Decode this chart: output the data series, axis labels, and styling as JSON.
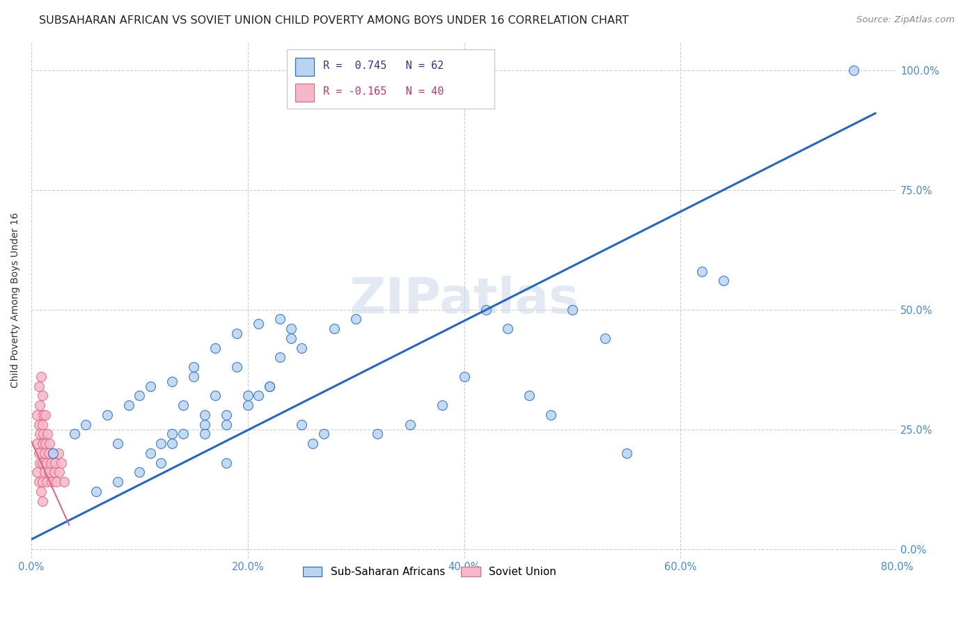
{
  "title": "SUBSAHARAN AFRICAN VS SOVIET UNION CHILD POVERTY AMONG BOYS UNDER 16 CORRELATION CHART",
  "source": "Source: ZipAtlas.com",
  "ylabel": "Child Poverty Among Boys Under 16",
  "blue_R": 0.745,
  "blue_N": 62,
  "pink_R": -0.165,
  "pink_N": 40,
  "watermark": "ZIPatlas",
  "blue_color": "#b8d4f0",
  "pink_color": "#f5b8c8",
  "line_blue": "#2266cc",
  "line_pink": "#dd6688",
  "legend_blue_label": "Sub-Saharan Africans",
  "legend_pink_label": "Soviet Union",
  "xlim": [
    0.0,
    0.8
  ],
  "ylim": [
    -0.02,
    1.06
  ],
  "blue_scatter_x": [
    0.3,
    0.02,
    0.04,
    0.05,
    0.07,
    0.08,
    0.09,
    0.1,
    0.11,
    0.12,
    0.13,
    0.14,
    0.15,
    0.16,
    0.17,
    0.18,
    0.19,
    0.2,
    0.21,
    0.22,
    0.23,
    0.24,
    0.24,
    0.25,
    0.26,
    0.13,
    0.15,
    0.17,
    0.19,
    0.21,
    0.23,
    0.14,
    0.16,
    0.18,
    0.2,
    0.22,
    0.28,
    0.3,
    0.32,
    0.35,
    0.38,
    0.4,
    0.42,
    0.44,
    0.46,
    0.48,
    0.5,
    0.53,
    0.55,
    0.62,
    0.64,
    0.1,
    0.12,
    0.08,
    0.06,
    0.11,
    0.13,
    0.16,
    0.18,
    0.25,
    0.27,
    0.76
  ],
  "blue_scatter_y": [
    1.0,
    0.2,
    0.24,
    0.26,
    0.28,
    0.22,
    0.3,
    0.32,
    0.34,
    0.22,
    0.24,
    0.3,
    0.36,
    0.28,
    0.32,
    0.26,
    0.38,
    0.3,
    0.32,
    0.34,
    0.4,
    0.44,
    0.46,
    0.42,
    0.22,
    0.35,
    0.38,
    0.42,
    0.45,
    0.47,
    0.48,
    0.24,
    0.26,
    0.28,
    0.32,
    0.34,
    0.46,
    0.48,
    0.24,
    0.26,
    0.3,
    0.36,
    0.5,
    0.46,
    0.32,
    0.28,
    0.5,
    0.44,
    0.2,
    0.58,
    0.56,
    0.16,
    0.18,
    0.14,
    0.12,
    0.2,
    0.22,
    0.24,
    0.18,
    0.26,
    0.24,
    1.0
  ],
  "pink_scatter_x": [
    0.005,
    0.005,
    0.005,
    0.007,
    0.007,
    0.007,
    0.007,
    0.008,
    0.008,
    0.008,
    0.009,
    0.009,
    0.01,
    0.01,
    0.01,
    0.01,
    0.01,
    0.01,
    0.011,
    0.011,
    0.012,
    0.012,
    0.013,
    0.013,
    0.014,
    0.014,
    0.015,
    0.016,
    0.016,
    0.017,
    0.018,
    0.019,
    0.02,
    0.021,
    0.022,
    0.023,
    0.025,
    0.026,
    0.028,
    0.03
  ],
  "pink_scatter_y": [
    0.28,
    0.22,
    0.16,
    0.34,
    0.26,
    0.2,
    0.14,
    0.3,
    0.24,
    0.18,
    0.36,
    0.12,
    0.32,
    0.26,
    0.22,
    0.18,
    0.14,
    0.1,
    0.28,
    0.24,
    0.2,
    0.16,
    0.28,
    0.22,
    0.18,
    0.14,
    0.24,
    0.2,
    0.16,
    0.22,
    0.18,
    0.14,
    0.2,
    0.16,
    0.18,
    0.14,
    0.2,
    0.16,
    0.18,
    0.14
  ],
  "blue_line_x0": 0.0,
  "blue_line_y0": 0.02,
  "blue_line_x1": 0.78,
  "blue_line_y1": 0.91,
  "pink_line_x0": 0.0,
  "pink_line_y0": 0.225,
  "pink_line_x1": 0.035,
  "pink_line_y1": 0.05,
  "title_fontsize": 11.5,
  "source_fontsize": 9.5,
  "axis_label_fontsize": 10,
  "tick_fontsize": 10.5,
  "scatter_size": 100
}
